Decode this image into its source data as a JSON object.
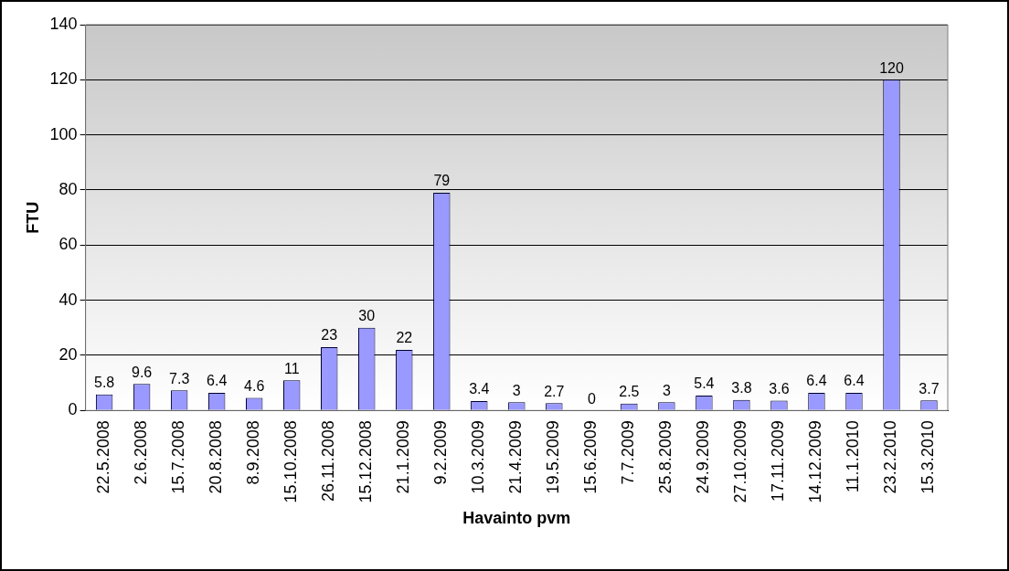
{
  "chart_data": {
    "type": "bar",
    "xlabel": "Havainto pvm",
    "ylabel": "FTU",
    "categories": [
      "22.5.2008",
      "2.6.2008",
      "15.7.2008",
      "20.8.2008",
      "8.9.2008",
      "15.10.2008",
      "26.11.2008",
      "15.12.2008",
      "21.1.2009",
      "9.2.2009",
      "10.3.2009",
      "21.4.2009",
      "19.5.2009",
      "15.6.2009",
      "7.7.2009",
      "25.8.2009",
      "24.9.2009",
      "27.10.2009",
      "17.11.2009",
      "14.12.2009",
      "11.1.2010",
      "23.2.2010",
      "15.3.2010"
    ],
    "values": [
      5.8,
      9.6,
      7.3,
      6.4,
      4.6,
      11,
      23,
      30,
      22,
      79,
      3.4,
      3,
      2.7,
      0,
      2.5,
      3,
      5.4,
      3.8,
      3.6,
      6.4,
      6.4,
      120,
      3.7
    ],
    "color": "#9999ff",
    "ylim": [
      0,
      140
    ],
    "yticks": [
      0,
      20,
      40,
      60,
      80,
      100,
      120,
      140
    ],
    "grid": "y",
    "data_labels": true
  }
}
